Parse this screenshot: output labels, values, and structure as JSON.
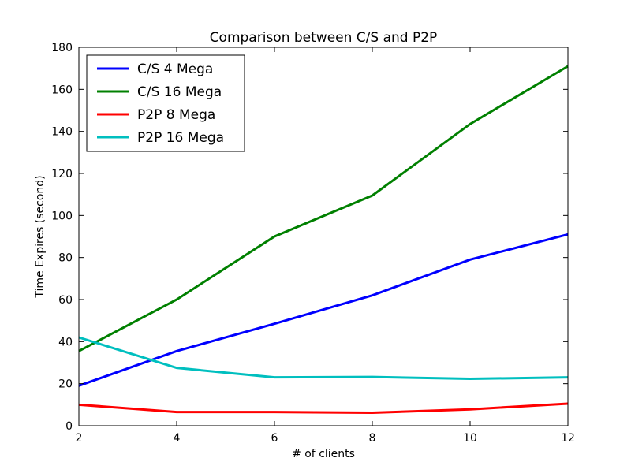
{
  "chart_data": {
    "type": "line",
    "title": "Comparison between C/S and P2P",
    "xlabel": "# of clients",
    "ylabel": "Time Expires (second)",
    "xlim": [
      2,
      12
    ],
    "ylim": [
      0,
      180
    ],
    "xticks": [
      2,
      4,
      6,
      8,
      10,
      12
    ],
    "yticks": [
      0,
      20,
      40,
      60,
      80,
      100,
      120,
      140,
      160,
      180
    ],
    "x": [
      2,
      4,
      6,
      8,
      10,
      12
    ],
    "grid": false,
    "legend_position": "top-left",
    "series": [
      {
        "name": "C/S 4 Mega",
        "color": "#0000ff",
        "values": [
          19,
          35.5,
          48.5,
          62,
          79,
          91
        ]
      },
      {
        "name": "C/S 16 Mega",
        "color": "#008000",
        "values": [
          35.5,
          60,
          90,
          109.5,
          143.5,
          171
        ]
      },
      {
        "name": "P2P 8 Mega",
        "color": "#ff0000",
        "values": [
          10,
          6.5,
          6.5,
          6.2,
          7.8,
          10.5
        ]
      },
      {
        "name": "P2P 16 Mega",
        "color": "#00bfbf",
        "values": [
          42,
          27.5,
          23,
          23.2,
          22.3,
          23
        ]
      }
    ]
  }
}
